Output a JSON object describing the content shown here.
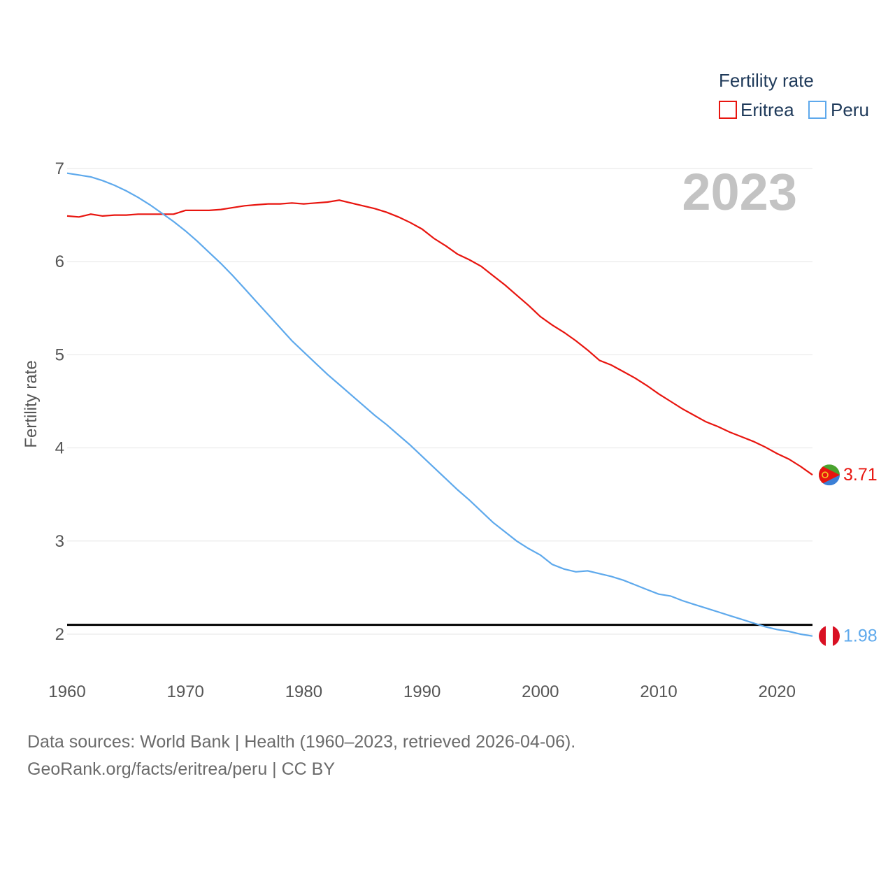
{
  "chart_data": {
    "type": "line",
    "title": "",
    "legend_title": "Fertility rate",
    "xlabel": "",
    "ylabel": "Fertility rate",
    "xlim": [
      1960,
      2023
    ],
    "ylim": [
      1.65,
      7.1
    ],
    "x_ticks": [
      1960,
      1970,
      1980,
      1990,
      2000,
      2010,
      2020
    ],
    "y_ticks": [
      2,
      3,
      4,
      5,
      6,
      7
    ],
    "grid": true,
    "legend_position": "top-right",
    "year_label": "2023",
    "replacement_level": 2.1,
    "replacement_line_color": "#000000",
    "series": [
      {
        "name": "Eritrea",
        "color": "#e8150f",
        "flag": "eritrea-flag",
        "end_label": "3.71",
        "x": [
          1960,
          1961,
          1962,
          1963,
          1964,
          1965,
          1966,
          1967,
          1968,
          1969,
          1970,
          1971,
          1972,
          1973,
          1974,
          1975,
          1976,
          1977,
          1978,
          1979,
          1980,
          1981,
          1982,
          1983,
          1984,
          1985,
          1986,
          1987,
          1988,
          1989,
          1990,
          1991,
          1992,
          1993,
          1994,
          1995,
          1996,
          1997,
          1998,
          1999,
          2000,
          2001,
          2002,
          2003,
          2004,
          2005,
          2006,
          2007,
          2008,
          2009,
          2010,
          2011,
          2012,
          2013,
          2014,
          2015,
          2016,
          2017,
          2018,
          2019,
          2020,
          2021,
          2022,
          2023
        ],
        "values": [
          6.49,
          6.48,
          6.51,
          6.49,
          6.5,
          6.5,
          6.51,
          6.51,
          6.51,
          6.51,
          6.55,
          6.55,
          6.55,
          6.56,
          6.58,
          6.6,
          6.61,
          6.62,
          6.62,
          6.63,
          6.62,
          6.63,
          6.64,
          6.66,
          6.63,
          6.6,
          6.57,
          6.53,
          6.48,
          6.42,
          6.35,
          6.25,
          6.17,
          6.08,
          6.02,
          5.95,
          5.85,
          5.75,
          5.64,
          5.53,
          5.41,
          5.32,
          5.24,
          5.15,
          5.05,
          4.94,
          4.89,
          4.82,
          4.75,
          4.67,
          4.58,
          4.5,
          4.42,
          4.35,
          4.28,
          4.23,
          4.17,
          4.12,
          4.07,
          4.01,
          3.94,
          3.88,
          3.8,
          3.71
        ]
      },
      {
        "name": "Peru",
        "color": "#5ea9ec",
        "flag": "peru-flag",
        "end_label": "1.98",
        "x": [
          1960,
          1961,
          1962,
          1963,
          1964,
          1965,
          1966,
          1967,
          1968,
          1969,
          1970,
          1971,
          1972,
          1973,
          1974,
          1975,
          1976,
          1977,
          1978,
          1979,
          1980,
          1981,
          1982,
          1983,
          1984,
          1985,
          1986,
          1987,
          1988,
          1989,
          1990,
          1991,
          1992,
          1993,
          1994,
          1995,
          1996,
          1997,
          1998,
          1999,
          2000,
          2001,
          2002,
          2003,
          2004,
          2005,
          2006,
          2007,
          2008,
          2009,
          2010,
          2011,
          2012,
          2013,
          2014,
          2015,
          2016,
          2017,
          2018,
          2019,
          2020,
          2021,
          2022,
          2023
        ],
        "values": [
          6.95,
          6.93,
          6.91,
          6.87,
          6.82,
          6.76,
          6.69,
          6.61,
          6.52,
          6.43,
          6.33,
          6.22,
          6.1,
          5.98,
          5.85,
          5.71,
          5.57,
          5.43,
          5.29,
          5.15,
          5.03,
          4.91,
          4.79,
          4.68,
          4.57,
          4.46,
          4.35,
          4.25,
          4.14,
          4.03,
          3.91,
          3.79,
          3.67,
          3.55,
          3.44,
          3.32,
          3.2,
          3.1,
          3.0,
          2.92,
          2.85,
          2.75,
          2.7,
          2.67,
          2.68,
          2.65,
          2.62,
          2.58,
          2.53,
          2.48,
          2.43,
          2.41,
          2.36,
          2.32,
          2.28,
          2.24,
          2.2,
          2.16,
          2.12,
          2.08,
          2.05,
          2.03,
          2.0,
          1.98
        ]
      }
    ]
  },
  "footer": {
    "line1": "Data sources: World Bank | Health (1960–2023, retrieved 2026-04-06).",
    "line2": "GeoRank.org/facts/eritrea/peru | CC BY"
  }
}
